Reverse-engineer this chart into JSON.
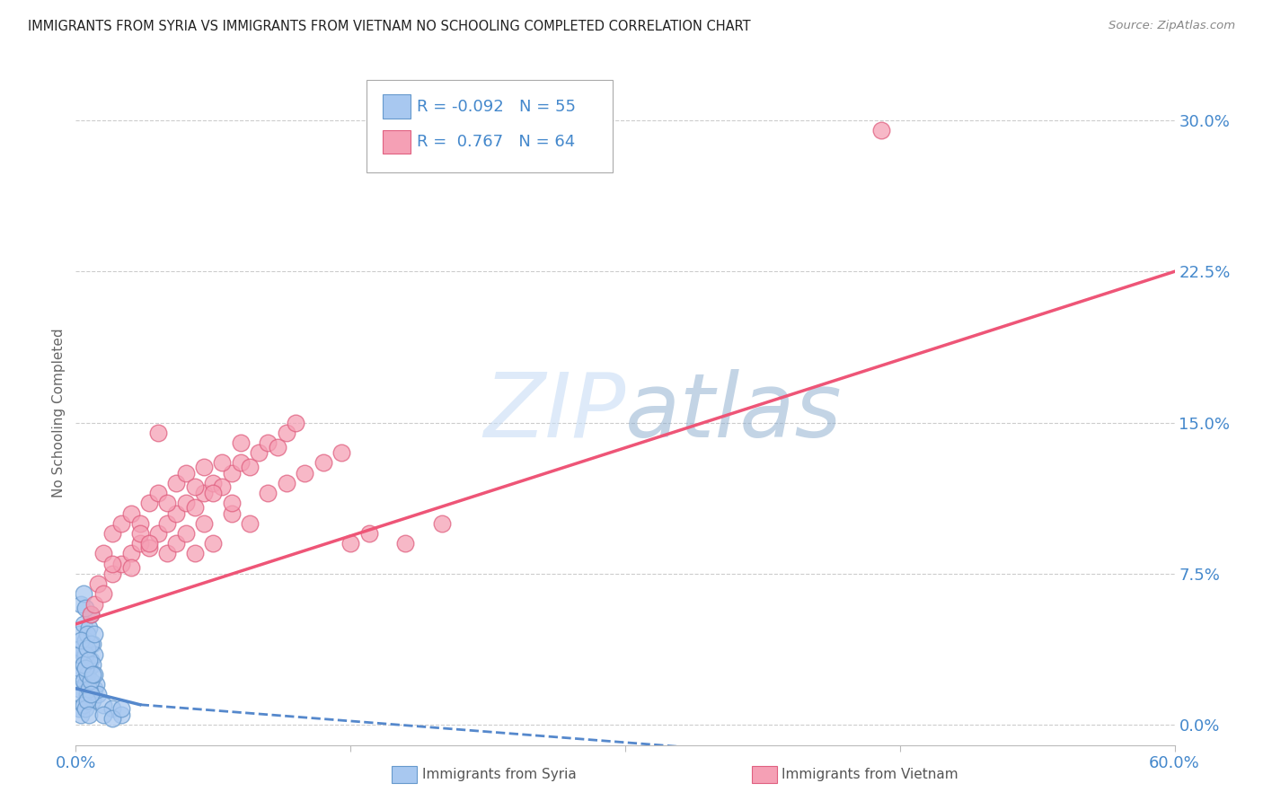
{
  "title": "IMMIGRANTS FROM SYRIA VS IMMIGRANTS FROM VIETNAM NO SCHOOLING COMPLETED CORRELATION CHART",
  "source": "Source: ZipAtlas.com",
  "ylabel": "No Schooling Completed",
  "ytick_values": [
    0.0,
    7.5,
    15.0,
    22.5,
    30.0
  ],
  "xlim": [
    0.0,
    60.0
  ],
  "ylim": [
    -1.0,
    32.0
  ],
  "watermark_zip": "ZIP",
  "watermark_atlas": "atlas",
  "legend_syria_r": "-0.092",
  "legend_syria_n": "55",
  "legend_vietnam_r": "0.767",
  "legend_vietnam_n": "64",
  "syria_color": "#a8c8f0",
  "vietnam_color": "#f5a0b5",
  "syria_edge_color": "#6699cc",
  "vietnam_edge_color": "#e06080",
  "syria_line_color": "#5588cc",
  "vietnam_line_color": "#ee5577",
  "background_color": "#ffffff",
  "grid_color": "#cccccc",
  "title_color": "#222222",
  "axis_label_color": "#4488cc",
  "syria_scatter": [
    [
      0.2,
      1.8
    ],
    [
      0.3,
      2.5
    ],
    [
      0.4,
      3.5
    ],
    [
      0.5,
      2.0
    ],
    [
      0.6,
      1.5
    ],
    [
      0.7,
      2.8
    ],
    [
      0.8,
      3.2
    ],
    [
      0.9,
      1.2
    ],
    [
      1.0,
      1.8
    ],
    [
      1.1,
      2.0
    ],
    [
      1.2,
      1.5
    ],
    [
      1.5,
      1.0
    ],
    [
      2.0,
      0.8
    ],
    [
      2.5,
      0.5
    ],
    [
      0.2,
      4.5
    ],
    [
      0.3,
      3.8
    ],
    [
      0.4,
      5.0
    ],
    [
      0.5,
      4.2
    ],
    [
      0.6,
      3.0
    ],
    [
      0.7,
      4.8
    ],
    [
      0.8,
      5.5
    ],
    [
      0.9,
      4.0
    ],
    [
      1.0,
      3.5
    ],
    [
      0.3,
      6.0
    ],
    [
      0.4,
      6.5
    ],
    [
      0.5,
      5.8
    ],
    [
      0.6,
      4.5
    ],
    [
      0.2,
      2.8
    ],
    [
      0.3,
      1.5
    ],
    [
      0.4,
      2.2
    ],
    [
      0.5,
      3.5
    ],
    [
      0.6,
      2.5
    ],
    [
      0.7,
      1.8
    ],
    [
      0.8,
      2.2
    ],
    [
      0.9,
      3.0
    ],
    [
      1.0,
      2.5
    ],
    [
      0.2,
      0.8
    ],
    [
      0.3,
      0.5
    ],
    [
      0.4,
      1.0
    ],
    [
      0.5,
      0.8
    ],
    [
      0.6,
      1.2
    ],
    [
      0.7,
      0.5
    ],
    [
      0.8,
      1.5
    ],
    [
      1.5,
      0.5
    ],
    [
      2.0,
      0.3
    ],
    [
      0.2,
      3.5
    ],
    [
      0.3,
      4.2
    ],
    [
      0.4,
      3.0
    ],
    [
      0.5,
      2.8
    ],
    [
      0.6,
      3.8
    ],
    [
      0.7,
      3.2
    ],
    [
      0.8,
      4.0
    ],
    [
      0.9,
      2.5
    ],
    [
      1.0,
      4.5
    ],
    [
      2.5,
      0.8
    ]
  ],
  "vietnam_scatter": [
    [
      0.8,
      5.5
    ],
    [
      1.0,
      6.0
    ],
    [
      1.2,
      7.0
    ],
    [
      1.5,
      6.5
    ],
    [
      2.0,
      7.5
    ],
    [
      2.5,
      8.0
    ],
    [
      3.0,
      8.5
    ],
    [
      3.5,
      9.0
    ],
    [
      4.0,
      8.8
    ],
    [
      4.5,
      9.5
    ],
    [
      5.0,
      10.0
    ],
    [
      5.5,
      10.5
    ],
    [
      6.0,
      11.0
    ],
    [
      6.5,
      10.8
    ],
    [
      7.0,
      11.5
    ],
    [
      7.5,
      12.0
    ],
    [
      8.0,
      11.8
    ],
    [
      8.5,
      12.5
    ],
    [
      9.0,
      13.0
    ],
    [
      9.5,
      12.8
    ],
    [
      10.0,
      13.5
    ],
    [
      10.5,
      14.0
    ],
    [
      11.0,
      13.8
    ],
    [
      11.5,
      14.5
    ],
    [
      12.0,
      15.0
    ],
    [
      2.0,
      9.5
    ],
    [
      2.5,
      10.0
    ],
    [
      3.0,
      10.5
    ],
    [
      3.5,
      10.0
    ],
    [
      4.0,
      11.0
    ],
    [
      4.5,
      11.5
    ],
    [
      5.0,
      11.0
    ],
    [
      5.5,
      12.0
    ],
    [
      6.0,
      12.5
    ],
    [
      6.5,
      11.8
    ],
    [
      7.0,
      12.8
    ],
    [
      7.5,
      11.5
    ],
    [
      8.0,
      13.0
    ],
    [
      8.5,
      10.5
    ],
    [
      9.0,
      14.0
    ],
    [
      1.5,
      8.5
    ],
    [
      2.0,
      8.0
    ],
    [
      3.0,
      7.8
    ],
    [
      3.5,
      9.5
    ],
    [
      4.0,
      9.0
    ],
    [
      5.0,
      8.5
    ],
    [
      5.5,
      9.0
    ],
    [
      6.0,
      9.5
    ],
    [
      6.5,
      8.5
    ],
    [
      7.0,
      10.0
    ],
    [
      7.5,
      9.0
    ],
    [
      8.5,
      11.0
    ],
    [
      9.5,
      10.0
    ],
    [
      10.5,
      11.5
    ],
    [
      11.5,
      12.0
    ],
    [
      12.5,
      12.5
    ],
    [
      13.5,
      13.0
    ],
    [
      14.5,
      13.5
    ],
    [
      15.0,
      9.0
    ],
    [
      16.0,
      9.5
    ],
    [
      18.0,
      9.0
    ],
    [
      20.0,
      10.0
    ],
    [
      44.0,
      29.5
    ],
    [
      4.5,
      14.5
    ]
  ],
  "syria_trendline_solid": [
    [
      0.0,
      1.8
    ],
    [
      3.5,
      1.0
    ]
  ],
  "syria_trendline_dash": [
    [
      3.5,
      1.0
    ],
    [
      60.0,
      -3.0
    ]
  ],
  "vietnam_trendline": [
    [
      0.0,
      5.0
    ],
    [
      60.0,
      22.5
    ]
  ]
}
